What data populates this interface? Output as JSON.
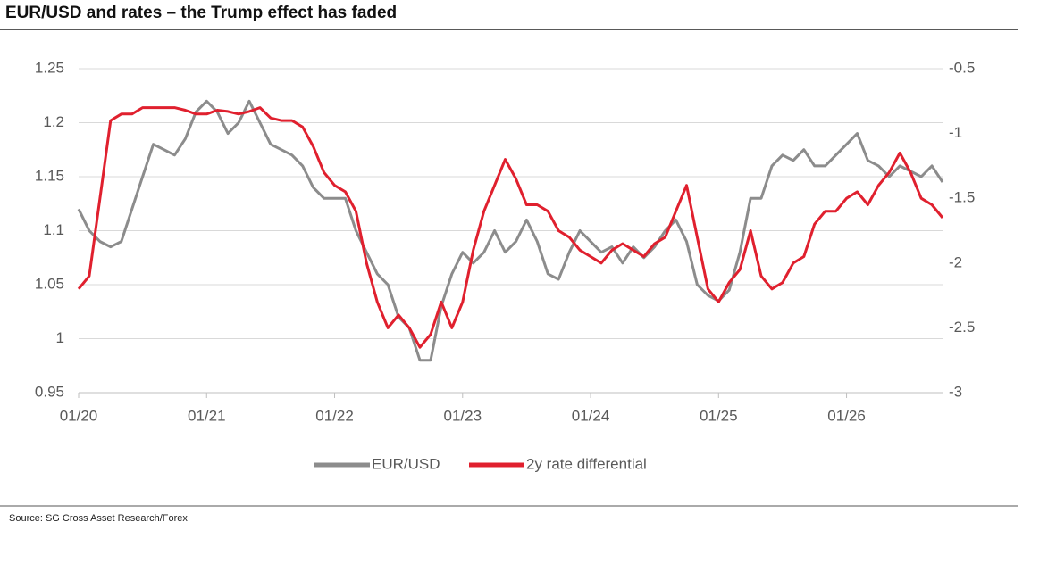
{
  "chart_data": {
    "type": "line",
    "title": "EUR/USD and rates – the Trump effect has faded",
    "source": "Source: SG Cross Asset Research/Forex",
    "x": [
      "2020-01",
      "2020-02",
      "2020-03",
      "2020-04",
      "2020-05",
      "2020-06",
      "2020-07",
      "2020-08",
      "2020-09",
      "2020-10",
      "2020-11",
      "2020-12",
      "2021-01",
      "2021-02",
      "2021-03",
      "2021-04",
      "2021-05",
      "2021-06",
      "2021-07",
      "2021-08",
      "2021-09",
      "2021-10",
      "2021-11",
      "2021-12",
      "2022-01",
      "2022-02",
      "2022-03",
      "2022-04",
      "2022-05",
      "2022-06",
      "2022-07",
      "2022-08",
      "2022-09",
      "2022-10",
      "2022-11",
      "2022-12",
      "2023-01",
      "2023-02",
      "2023-03",
      "2023-04",
      "2023-05",
      "2023-06",
      "2023-07",
      "2023-08",
      "2023-09",
      "2023-10",
      "2023-11",
      "2023-12",
      "2024-01",
      "2024-02",
      "2024-03",
      "2024-04",
      "2024-05",
      "2024-06",
      "2024-07",
      "2024-08",
      "2024-09",
      "2024-10",
      "2024-11",
      "2024-12",
      "2025-01",
      "2025-02",
      "2025-03",
      "2025-04",
      "2025-05",
      "2025-06",
      "2025-07",
      "2025-08",
      "2025-09",
      "2025-10",
      "2025-11",
      "2025-12",
      "2026-01",
      "2026-02",
      "2026-03",
      "2026-04",
      "2026-05",
      "2026-06",
      "2026-07",
      "2026-08",
      "2026-09",
      "2026-10"
    ],
    "series": [
      {
        "name": "EUR/USD",
        "color": "#8c8c8c",
        "values": [
          1.12,
          1.1,
          1.09,
          1.085,
          1.09,
          1.12,
          1.15,
          1.18,
          1.175,
          1.17,
          1.185,
          1.21,
          1.22,
          1.21,
          1.19,
          1.2,
          1.22,
          1.2,
          1.18,
          1.175,
          1.17,
          1.16,
          1.14,
          1.13,
          1.13,
          1.13,
          1.1,
          1.08,
          1.06,
          1.05,
          1.02,
          1.01,
          0.98,
          0.98,
          1.03,
          1.06,
          1.08,
          1.07,
          1.08,
          1.1,
          1.08,
          1.09,
          1.11,
          1.09,
          1.06,
          1.055,
          1.08,
          1.1,
          1.09,
          1.08,
          1.085,
          1.07,
          1.085,
          1.075,
          1.085,
          1.1,
          1.11,
          1.09,
          1.05,
          1.04,
          1.035,
          1.045,
          1.08,
          1.13,
          1.13,
          1.16,
          1.17,
          1.165,
          1.175,
          1.16,
          1.16,
          1.17,
          1.18,
          1.19,
          1.165,
          1.16,
          1.15,
          1.16,
          1.155,
          1.15,
          1.16,
          1.145
        ]
      },
      {
        "name": "2y rate differential",
        "color": "#e0202e",
        "axis": "y2",
        "values": [
          -2.2,
          -2.1,
          -1.5,
          -0.9,
          -0.85,
          -0.85,
          -0.8,
          -0.8,
          -0.8,
          -0.8,
          -0.82,
          -0.85,
          -0.85,
          -0.82,
          -0.83,
          -0.85,
          -0.83,
          -0.8,
          -0.88,
          -0.9,
          -0.9,
          -0.95,
          -1.1,
          -1.3,
          -1.4,
          -1.45,
          -1.6,
          -2.0,
          -2.3,
          -2.5,
          -2.4,
          -2.5,
          -2.65,
          -2.55,
          -2.3,
          -2.5,
          -2.3,
          -1.9,
          -1.6,
          -1.4,
          -1.2,
          -1.35,
          -1.55,
          -1.55,
          -1.6,
          -1.75,
          -1.8,
          -1.9,
          -1.95,
          -2.0,
          -1.9,
          -1.85,
          -1.9,
          -1.95,
          -1.85,
          -1.8,
          -1.6,
          -1.4,
          -1.8,
          -2.2,
          -2.3,
          -2.15,
          -2.05,
          -1.75,
          -2.1,
          -2.2,
          -2.15,
          -2.0,
          -1.95,
          -1.7,
          -1.6,
          -1.6,
          -1.5,
          -1.45,
          -1.55,
          -1.4,
          -1.3,
          -1.15,
          -1.3,
          -1.5,
          -1.55,
          -1.65
        ]
      }
    ],
    "xlim": [
      "2020-01",
      "2026-10"
    ],
    "xticks": [
      {
        "value": "2020-01",
        "label": "01/20"
      },
      {
        "value": "2021-01",
        "label": "01/21"
      },
      {
        "value": "2022-01",
        "label": "01/22"
      },
      {
        "value": "2023-01",
        "label": "01/23"
      },
      {
        "value": "2024-01",
        "label": "01/24"
      },
      {
        "value": "2025-01",
        "label": "01/25"
      },
      {
        "value": "2026-01",
        "label": "01/26"
      }
    ],
    "ylim": [
      0.95,
      1.25
    ],
    "yticks": [
      0.95,
      1,
      1.05,
      1.1,
      1.15,
      1.2,
      1.25
    ],
    "y2lim": [
      -3,
      -0.5
    ],
    "y2ticks": [
      -3,
      -2.5,
      -2,
      -1.5,
      -1,
      -0.5
    ],
    "grid": true,
    "legend": "bottom"
  }
}
